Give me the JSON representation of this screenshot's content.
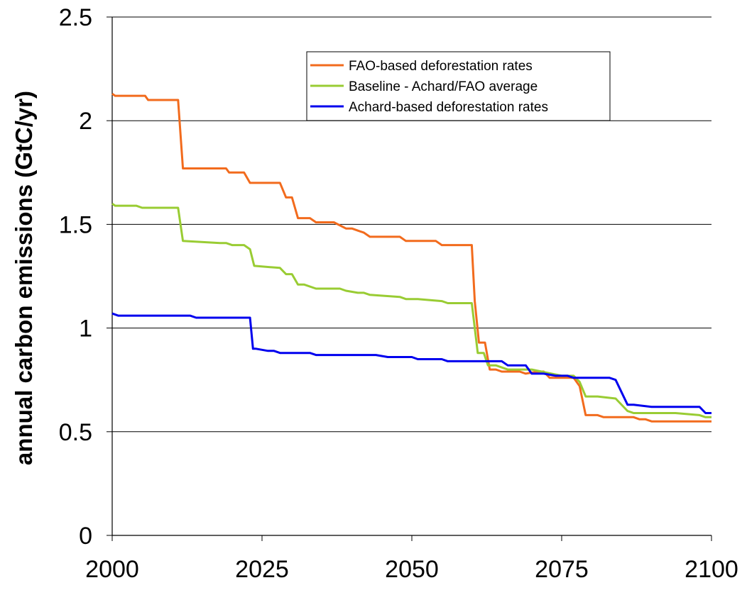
{
  "chart_data": {
    "type": "line",
    "title": "",
    "xlabel": "",
    "ylabel": "annual carbon emissions (GtC/yr)",
    "xlim": [
      2000,
      2100
    ],
    "ylim": [
      0,
      2.5
    ],
    "x_ticks": [
      "2000",
      "2025",
      "2050",
      "2075",
      "2100"
    ],
    "y_ticks": [
      "0",
      "0.5",
      "1",
      "1.5",
      "2",
      "2.5"
    ],
    "grid": "horizontal",
    "legend_position": "top-right",
    "series": [
      {
        "name": "FAO-based deforestation rates",
        "color": "#f26b1d",
        "points": [
          [
            2000,
            2.13
          ],
          [
            2000.5,
            2.12
          ],
          [
            2005.5,
            2.12
          ],
          [
            2006,
            2.1
          ],
          [
            2011,
            2.1
          ],
          [
            2011.8,
            1.77
          ],
          [
            2019,
            1.77
          ],
          [
            2019.5,
            1.75
          ],
          [
            2021,
            1.75
          ],
          [
            2022,
            1.75
          ],
          [
            2023,
            1.7
          ],
          [
            2028,
            1.7
          ],
          [
            2029,
            1.63
          ],
          [
            2030,
            1.63
          ],
          [
            2031,
            1.53
          ],
          [
            2033,
            1.53
          ],
          [
            2034,
            1.51
          ],
          [
            2037,
            1.51
          ],
          [
            2039,
            1.48
          ],
          [
            2040,
            1.48
          ],
          [
            2041,
            1.47
          ],
          [
            2042,
            1.46
          ],
          [
            2043,
            1.44
          ],
          [
            2048,
            1.44
          ],
          [
            2049,
            1.42
          ],
          [
            2054,
            1.42
          ],
          [
            2055,
            1.4
          ],
          [
            2060,
            1.4
          ],
          [
            2060.5,
            1.13
          ],
          [
            2061.2,
            0.93
          ],
          [
            2062.2,
            0.93
          ],
          [
            2063,
            0.8
          ],
          [
            2064,
            0.8
          ],
          [
            2065,
            0.79
          ],
          [
            2068,
            0.79
          ],
          [
            2069,
            0.78
          ],
          [
            2071,
            0.79
          ],
          [
            2072,
            0.79
          ],
          [
            2073,
            0.76
          ],
          [
            2077,
            0.76
          ],
          [
            2078,
            0.72
          ],
          [
            2079,
            0.58
          ],
          [
            2081,
            0.58
          ],
          [
            2082,
            0.57
          ],
          [
            2087,
            0.57
          ],
          [
            2088,
            0.56
          ],
          [
            2089,
            0.56
          ],
          [
            2090,
            0.55
          ],
          [
            2100,
            0.55
          ]
        ]
      },
      {
        "name": "Baseline - Achard/FAO average",
        "color": "#99cc33",
        "points": [
          [
            2000,
            1.6
          ],
          [
            2000.5,
            1.59
          ],
          [
            2004,
            1.59
          ],
          [
            2005,
            1.58
          ],
          [
            2011,
            1.58
          ],
          [
            2011.8,
            1.42
          ],
          [
            2018,
            1.41
          ],
          [
            2019,
            1.41
          ],
          [
            2020,
            1.4
          ],
          [
            2022,
            1.4
          ],
          [
            2023,
            1.38
          ],
          [
            2023.7,
            1.3
          ],
          [
            2028,
            1.29
          ],
          [
            2029,
            1.26
          ],
          [
            2030,
            1.26
          ],
          [
            2031,
            1.21
          ],
          [
            2032,
            1.21
          ],
          [
            2034,
            1.19
          ],
          [
            2038,
            1.19
          ],
          [
            2039,
            1.18
          ],
          [
            2041,
            1.17
          ],
          [
            2042,
            1.17
          ],
          [
            2043,
            1.16
          ],
          [
            2048,
            1.15
          ],
          [
            2049,
            1.14
          ],
          [
            2050,
            1.14
          ],
          [
            2051,
            1.14
          ],
          [
            2055,
            1.13
          ],
          [
            2056,
            1.12
          ],
          [
            2060,
            1.12
          ],
          [
            2060.5,
            1.0
          ],
          [
            2061,
            0.88
          ],
          [
            2062,
            0.88
          ],
          [
            2062.7,
            0.82
          ],
          [
            2064,
            0.82
          ],
          [
            2066,
            0.8
          ],
          [
            2070,
            0.8
          ],
          [
            2075,
            0.77
          ],
          [
            2077,
            0.77
          ],
          [
            2078,
            0.74
          ],
          [
            2079,
            0.67
          ],
          [
            2081,
            0.67
          ],
          [
            2084,
            0.66
          ],
          [
            2086,
            0.6
          ],
          [
            2087,
            0.59
          ],
          [
            2088,
            0.59
          ],
          [
            2094,
            0.59
          ],
          [
            2098,
            0.58
          ],
          [
            2099,
            0.57
          ],
          [
            2100,
            0.57
          ]
        ]
      },
      {
        "name": "Achard-based deforestation rates",
        "color": "#0000ee",
        "points": [
          [
            2000,
            1.07
          ],
          [
            2001,
            1.06
          ],
          [
            2013,
            1.06
          ],
          [
            2014,
            1.05
          ],
          [
            2023,
            1.05
          ],
          [
            2023.5,
            0.9
          ],
          [
            2024,
            0.9
          ],
          [
            2026,
            0.89
          ],
          [
            2027,
            0.89
          ],
          [
            2028,
            0.88
          ],
          [
            2033,
            0.88
          ],
          [
            2034,
            0.87
          ],
          [
            2042,
            0.87
          ],
          [
            2044,
            0.87
          ],
          [
            2046,
            0.86
          ],
          [
            2050,
            0.86
          ],
          [
            2051,
            0.85
          ],
          [
            2055,
            0.85
          ],
          [
            2056,
            0.84
          ],
          [
            2065,
            0.84
          ],
          [
            2066,
            0.82
          ],
          [
            2069,
            0.82
          ],
          [
            2070,
            0.78
          ],
          [
            2071,
            0.78
          ],
          [
            2072,
            0.78
          ],
          [
            2074,
            0.77
          ],
          [
            2076,
            0.77
          ],
          [
            2077,
            0.76
          ],
          [
            2083,
            0.76
          ],
          [
            2084,
            0.75
          ],
          [
            2086,
            0.63
          ],
          [
            2087,
            0.63
          ],
          [
            2090,
            0.62
          ],
          [
            2098,
            0.62
          ],
          [
            2099,
            0.59
          ],
          [
            2100,
            0.59
          ]
        ]
      }
    ]
  }
}
